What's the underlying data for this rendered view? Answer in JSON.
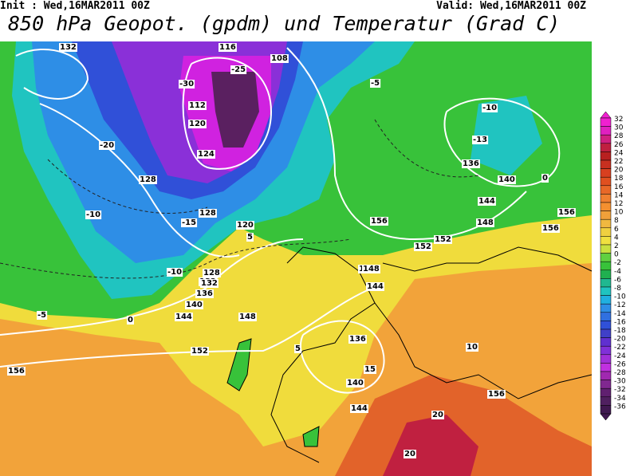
{
  "header": {
    "init": "Init : Wed,16MAR2011 00Z",
    "valid": "Valid: Wed,16MAR2011 00Z",
    "title": "850 hPa Geopot. (gpdm) und Temperatur (Grad C)"
  },
  "contour_labels": [
    "132",
    "116",
    "108",
    "128",
    "132",
    "144",
    "148",
    "152",
    "156",
    "136",
    "140",
    "144",
    "148",
    "156",
    "112",
    "120",
    "124",
    "128",
    "120",
    "128",
    "132",
    "136",
    "140",
    "144",
    "148",
    "152",
    "156",
    "136",
    "140",
    "144",
    "148",
    "152",
    "156",
    "156",
    "-30",
    "-25",
    "-20",
    "-15",
    "-10",
    "-5",
    "0",
    "5",
    "-10",
    "-13",
    "-10",
    "-5",
    "0",
    "5",
    "10",
    "15",
    "20",
    "20"
  ],
  "legend": {
    "labels": [
      32,
      30,
      28,
      26,
      24,
      22,
      20,
      18,
      16,
      14,
      12,
      10,
      8,
      6,
      4,
      2,
      0,
      -2,
      -4,
      -6,
      -8,
      -10,
      -12,
      -14,
      -16,
      -18,
      -20,
      -22,
      -24,
      -26,
      -28,
      -30,
      -32,
      -34,
      -36
    ],
    "colors": [
      "#f020d0",
      "#e020c0",
      "#d02080",
      "#c02040",
      "#b82020",
      "#c83020",
      "#d84020",
      "#e05020",
      "#e86828",
      "#f08030",
      "#f49030",
      "#f0a03a",
      "#f0b840",
      "#f0d040",
      "#f0e040",
      "#c8e040",
      "#60d040",
      "#38c23a",
      "#20b050",
      "#20b890",
      "#20c4c0",
      "#20b0e0",
      "#2e8ee6",
      "#3070e0",
      "#3050d8",
      "#4040c8",
      "#6030d0",
      "#8030d8",
      "#a030d8",
      "#c030e0",
      "#a028b0",
      "#802890",
      "#602070",
      "#502060",
      "#401850"
    ]
  }
}
